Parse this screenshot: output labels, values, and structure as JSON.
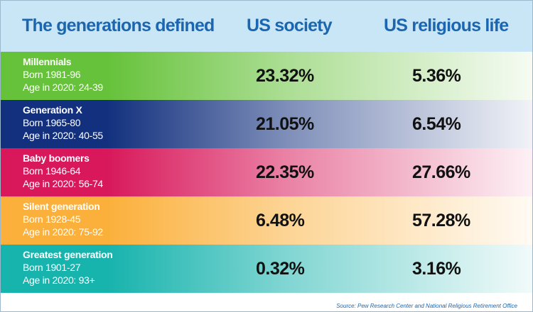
{
  "header": {
    "generations": "The generations defined",
    "society": "US society",
    "religious": "US religious life"
  },
  "colors": {
    "header_bg": "#c9e6f7",
    "header_text": "#1c66b0"
  },
  "chart_data": {
    "type": "table",
    "columns": [
      "The generations defined",
      "US society",
      "US religious life"
    ],
    "rows": [
      {
        "name": "Millennials",
        "born": "Born 1981-96",
        "age": "Age in 2020: 24-39",
        "society": "23.32%",
        "religious": "5.36%",
        "color": "#66c23a"
      },
      {
        "name": "Generation X",
        "born": "Born 1965-80",
        "age": "Age in 2020: 40-55",
        "society": "21.05%",
        "religious": "6.54%",
        "color": "#12307e"
      },
      {
        "name": "Baby boomers",
        "born": "Born 1946-64",
        "age": "Age in 2020: 56-74",
        "society": "22.35%",
        "religious": "27.66%",
        "color": "#d8185a"
      },
      {
        "name": "Silent generation",
        "born": "Born 1928-45",
        "age": "Age in 2020: 75-92",
        "society": "6.48%",
        "religious": "57.28%",
        "color": "#fbb03b"
      },
      {
        "name": "Greatest generation",
        "born": "Born 1901-27",
        "age": "Age in 2020: 93+",
        "society": "0.32%",
        "religious": "3.16%",
        "color": "#17b3ad"
      }
    ]
  },
  "source": "Source: Pew Research Center and National Religious Retirement Office"
}
